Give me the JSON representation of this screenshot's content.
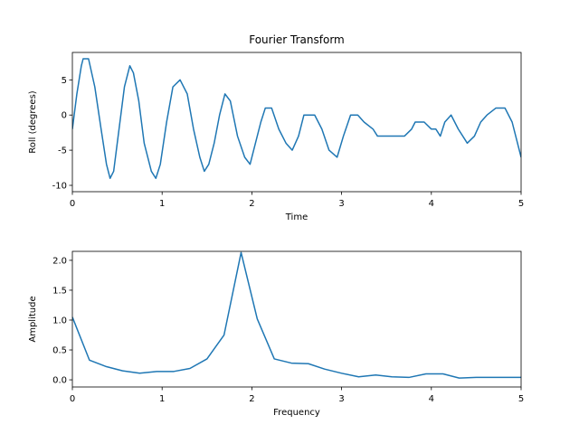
{
  "chart_data": [
    {
      "type": "line",
      "title": "Fourier Transform",
      "x_label": "Time",
      "y_label": "Roll (degrees)",
      "x": [
        0,
        0.05,
        0.1,
        0.12,
        0.18,
        0.25,
        0.32,
        0.38,
        0.42,
        0.46,
        0.52,
        0.58,
        0.64,
        0.68,
        0.74,
        0.8,
        0.88,
        0.93,
        0.98,
        1.05,
        1.12,
        1.2,
        1.28,
        1.35,
        1.42,
        1.47,
        1.52,
        1.58,
        1.64,
        1.7,
        1.76,
        1.84,
        1.92,
        1.98,
        2.04,
        2.1,
        2.15,
        2.22,
        2.3,
        2.38,
        2.45,
        2.52,
        2.58,
        2.7,
        2.78,
        2.86,
        2.95,
        3.02,
        3.1,
        3.18,
        3.25,
        3.35,
        3.4,
        3.7,
        3.78,
        3.82,
        3.92,
        4.0,
        4.05,
        4.1,
        4.15,
        4.22,
        4.3,
        4.4,
        4.48,
        4.55,
        4.62,
        4.72,
        4.82,
        4.9,
        4.96,
        5.0
      ],
      "series": [
        {
          "color": "#1f77b4",
          "values": [
            -2,
            3,
            7,
            8,
            8,
            4,
            -2,
            -7,
            -9,
            -8,
            -2,
            4,
            7,
            6,
            2,
            -4,
            -8,
            -9,
            -7,
            -1,
            4,
            5,
            3,
            -2,
            -6,
            -8,
            -7,
            -4,
            0,
            3,
            2,
            -3,
            -6,
            -7,
            -4,
            -1,
            1,
            1,
            -2,
            -4,
            -5,
            -3,
            0,
            0,
            -2,
            -5,
            -6,
            -3,
            0,
            0,
            -1,
            -2,
            -3,
            -3,
            -2,
            -1,
            -1,
            -2,
            -2,
            -3,
            -1,
            0,
            -2,
            -4,
            -3,
            -1,
            0,
            1,
            1,
            -1,
            -4,
            -6
          ]
        }
      ],
      "xlim": [
        0,
        5
      ],
      "xticks": [
        0,
        1,
        2,
        3,
        4,
        5
      ],
      "ylim": [
        -10.9,
        8.9
      ],
      "yticks": [
        -10,
        -5,
        0,
        5
      ]
    },
    {
      "type": "line",
      "x_label": "Frequency",
      "y_label": "Amplitude",
      "x": [
        0,
        0.19,
        0.38,
        0.56,
        0.75,
        0.94,
        1.13,
        1.31,
        1.5,
        1.69,
        1.88,
        2.06,
        2.25,
        2.44,
        2.63,
        2.81,
        3.0,
        3.19,
        3.38,
        3.56,
        3.75,
        3.94,
        4.13,
        4.31,
        4.5,
        4.69,
        4.88,
        5.06
      ],
      "series": [
        {
          "color": "#1f77b4",
          "values": [
            1.05,
            0.33,
            0.22,
            0.15,
            0.11,
            0.14,
            0.14,
            0.19,
            0.35,
            0.75,
            2.13,
            1.02,
            0.35,
            0.28,
            0.27,
            0.18,
            0.11,
            0.05,
            0.08,
            0.05,
            0.04,
            0.1,
            0.1,
            0.03,
            0.04,
            0.04,
            0.04,
            0.04
          ]
        }
      ],
      "xlim": [
        0,
        5
      ],
      "xticks": [
        0,
        1,
        2,
        3,
        4,
        5
      ],
      "ylim": [
        -0.12,
        2.15
      ],
      "yticks": [
        {
          "value": 0,
          "label": "0.0"
        },
        {
          "value": 0.5,
          "label": "0.5"
        },
        {
          "value": 1,
          "label": "1.0"
        },
        {
          "value": 1.5,
          "label": "1.5"
        },
        {
          "value": 2,
          "label": "2.0"
        }
      ]
    }
  ]
}
